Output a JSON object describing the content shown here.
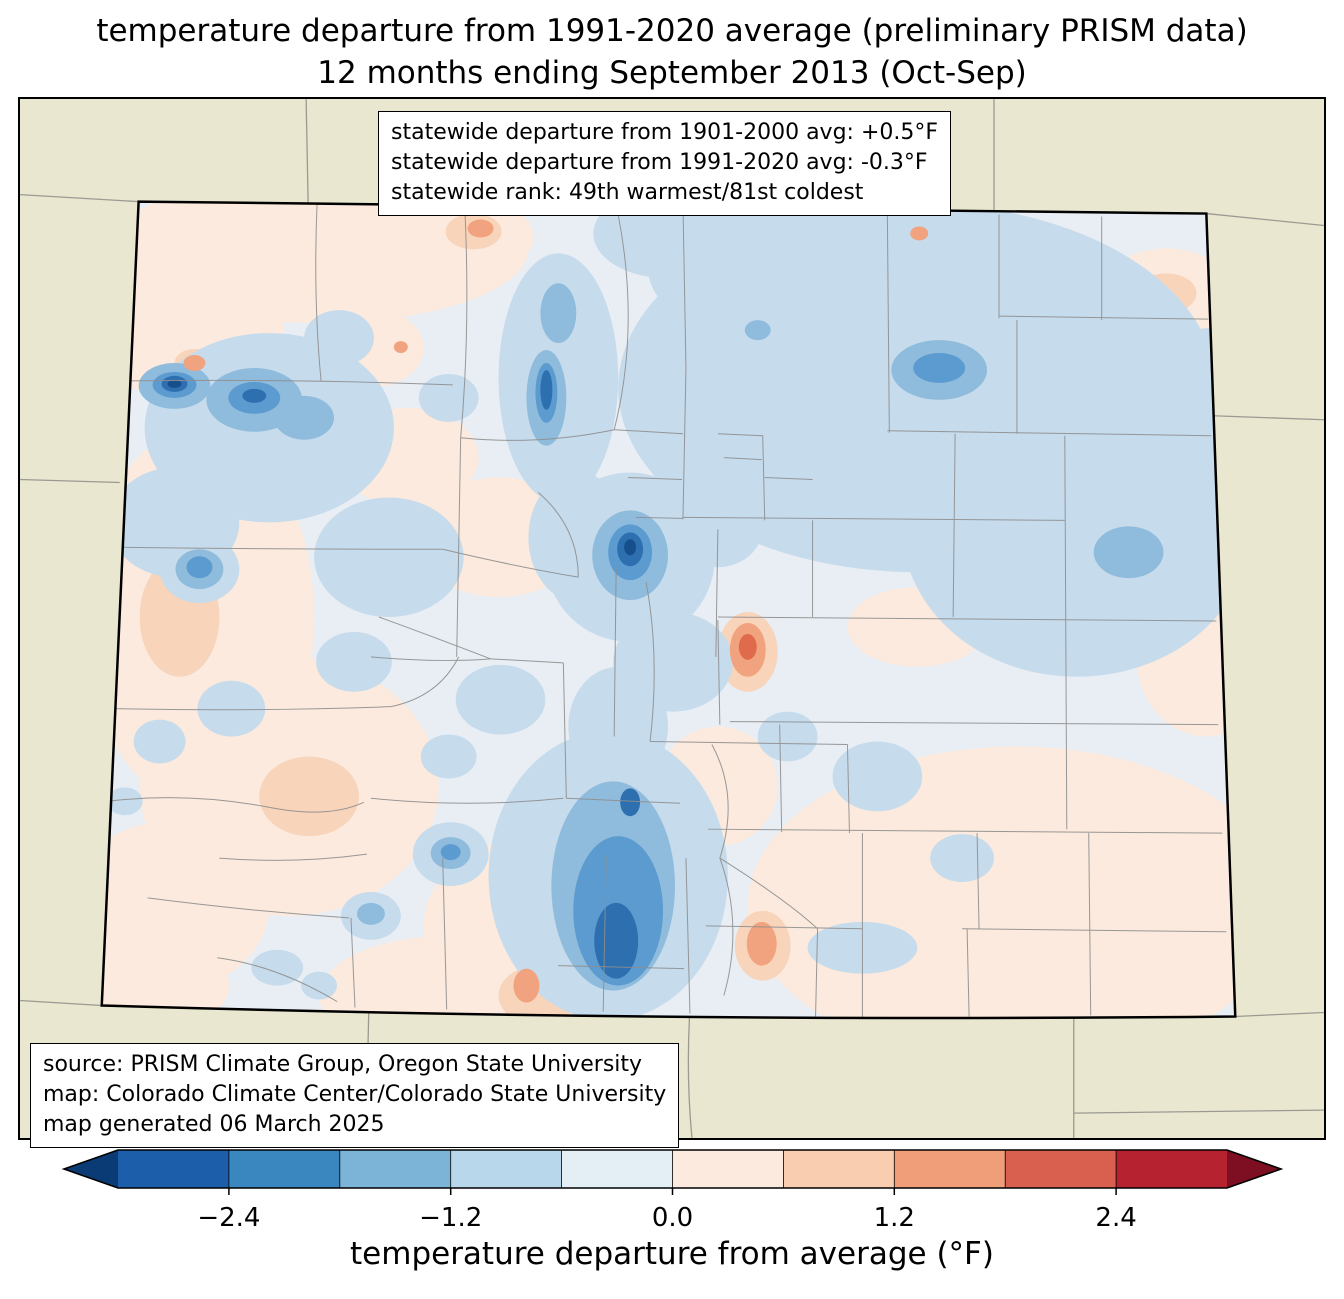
{
  "title": {
    "line1": "temperature departure from 1991-2020 average (preliminary PRISM data)",
    "line2": "12 months ending September 2013 (Oct-Sep)"
  },
  "stats_box": {
    "lines": [
      "statewide departure from 1901-2000 avg: +0.5°F",
      "statewide departure from 1991-2020 avg: -0.3°F",
      "statewide rank: 49th warmest/81st coldest"
    ]
  },
  "source_box": {
    "lines": [
      "source: PRISM Climate Group, Oregon State University",
      "map: Colorado Climate Center/Colorado State University",
      "map generated 06 March 2025"
    ]
  },
  "colorbar": {
    "label": "temperature departure from average (°F)",
    "range": [
      -3.0,
      3.0
    ],
    "ticks": [
      {
        "label": "−2.4",
        "position": 0.1
      },
      {
        "label": "−1.2",
        "position": 0.3
      },
      {
        "label": "0.0",
        "position": 0.5
      },
      {
        "label": "1.2",
        "position": 0.7
      },
      {
        "label": "2.4",
        "position": 0.9
      }
    ],
    "segment_colors": [
      "#1c5ea9",
      "#3a87c0",
      "#7cb4d8",
      "#b8d7ea",
      "#e4eef5",
      "#fceade",
      "#f9cdb0",
      "#f09e7a",
      "#d95f4e",
      "#b62230"
    ],
    "left_arrow_color": "#0a3b75",
    "right_arrow_color": "#7e0f22"
  },
  "map": {
    "region": "Colorado",
    "outside_color": "#e9e7d0",
    "state_border_color": "#000000",
    "county_line_color": "#8e8e8e",
    "palette": {
      "base": "#e9eef4",
      "light_peach": "#fbeadd",
      "peach": "#f8d4ba",
      "salmon": "#f0a37e",
      "orange_red": "#e06b4c",
      "light_blue": "#c6dbec",
      "medium_blue": "#8fbcdc",
      "blue": "#5b9bd0",
      "strong_blue": "#2e6fb0",
      "dark_blue": "#174e8c"
    }
  }
}
